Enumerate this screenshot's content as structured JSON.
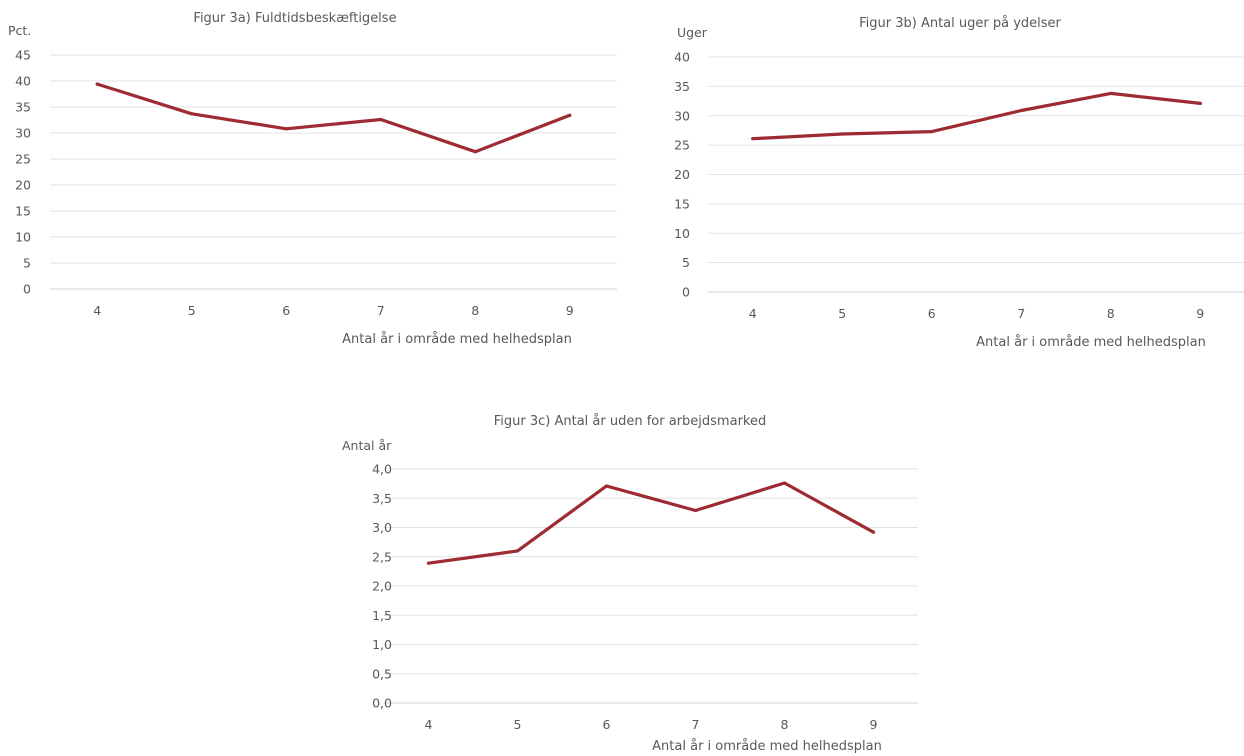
{
  "series_color": "#9e2a32",
  "chart_data": [
    {
      "type": "line",
      "title": "Figur 3a) Fuldtidsbeskæftigelse",
      "ylabel": "Pct.",
      "xlabel": "Antal år i område med helhedsplan",
      "categories": [
        "4",
        "5",
        "6",
        "7",
        "8",
        "9"
      ],
      "values": [
        39.4,
        33.7,
        30.8,
        32.6,
        26.4,
        33.4
      ],
      "ylim": [
        0,
        45
      ],
      "yticks": [
        "0",
        "5",
        "10",
        "15",
        "20",
        "25",
        "30",
        "35",
        "40",
        "45"
      ],
      "grid": true
    },
    {
      "type": "line",
      "title": "Figur 3b) Antal uger på ydelser",
      "ylabel": "Uger",
      "xlabel": "Antal år i område med helhedsplan",
      "categories": [
        "4",
        "5",
        "6",
        "7",
        "8",
        "9"
      ],
      "values": [
        26.1,
        26.9,
        27.3,
        30.9,
        33.8,
        32.1
      ],
      "ylim": [
        0,
        40
      ],
      "yticks": [
        "0",
        "5",
        "10",
        "15",
        "20",
        "25",
        "30",
        "35",
        "40"
      ],
      "grid": true
    },
    {
      "type": "line",
      "title": "Figur 3c) Antal år uden for arbejdsmarked",
      "ylabel": "Antal år",
      "xlabel": "Antal år i område med helhedsplan",
      "categories": [
        "4",
        "5",
        "6",
        "7",
        "8",
        "9"
      ],
      "values": [
        2.39,
        2.6,
        3.71,
        3.29,
        3.76,
        2.92
      ],
      "ylim": [
        0,
        4
      ],
      "yticks": [
        "0,0",
        "0,5",
        "1,0",
        "1,5",
        "2,0",
        "2,5",
        "3,0",
        "3,5",
        "4,0"
      ],
      "grid": true
    }
  ]
}
